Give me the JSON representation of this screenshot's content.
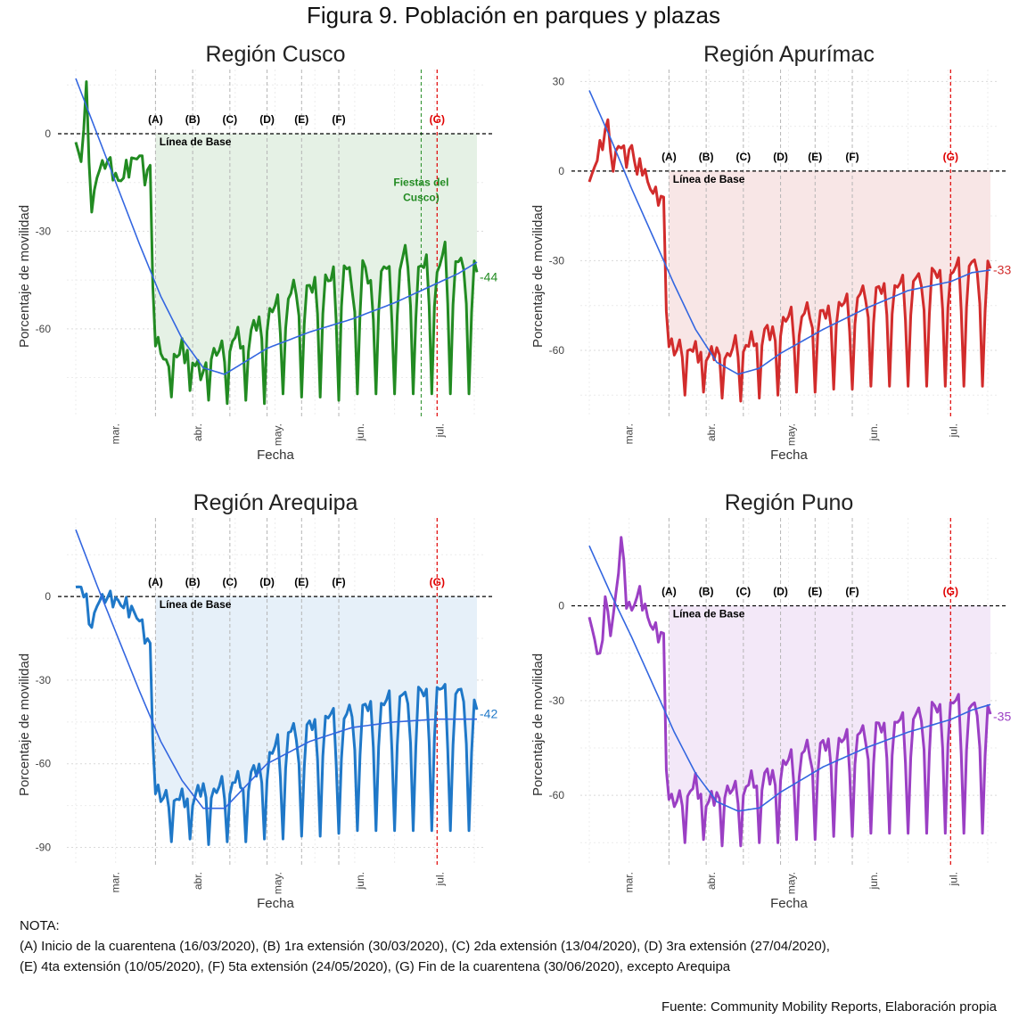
{
  "title": "Figura 9. Población en parques y plazas",
  "note_title": "NOTA:",
  "note_line1": "(A) Inicio de la cuarentena (16/03/2020), (B) 1ra extensión (30/03/2020), (C) 2da extensión (13/04/2020), (D) 3ra extensión (27/04/2020),",
  "note_line2": "(E) 4ta extensión (10/05/2020), (F) 5ta extensión (24/05/2020), (G) Fin de la cuarentena (30/06/2020), excepto Arequipa",
  "source": "Fuente: Community Mobility Reports, Elaboración propia",
  "baseline_label": "Línea de Base",
  "events": [
    {
      "label": "(A)",
      "date": "2020-03-16",
      "color": "#000000"
    },
    {
      "label": "(B)",
      "date": "2020-03-30",
      "color": "#000000"
    },
    {
      "label": "(C)",
      "date": "2020-04-13",
      "color": "#000000"
    },
    {
      "label": "(D)",
      "date": "2020-04-27",
      "color": "#000000"
    },
    {
      "label": "(E)",
      "date": "2020-05-10",
      "color": "#000000"
    },
    {
      "label": "(F)",
      "date": "2020-05-24",
      "color": "#000000"
    },
    {
      "label": "(G)",
      "date": "2020-06-30",
      "color": "#e00000"
    }
  ],
  "chart_data": [
    {
      "type": "line",
      "title": "Región Cusco",
      "xlabel": "Fecha",
      "ylabel": "Porcentaje de movilidad",
      "x_ticks": [
        "mar.",
        "abr.",
        "may.",
        "jun.",
        "jul."
      ],
      "y_ticks": [
        0,
        -30,
        -60
      ],
      "ylim": [
        -85,
        17
      ],
      "xlim": [
        "2020-02-15",
        "2020-07-15"
      ],
      "color": "#228b22",
      "fill": "#e5f1e5",
      "end_value": -44,
      "end_label": "-44",
      "annotation": {
        "text": [
          "Fiestas del",
          "Cusco)"
        ],
        "date": "2020-06-24",
        "color": "#228b22"
      },
      "trend": [
        [
          0,
          17
        ],
        [
          8,
          0
        ],
        [
          16,
          -17
        ],
        [
          24,
          -34
        ],
        [
          32,
          -50
        ],
        [
          40,
          -63
        ],
        [
          48,
          -72
        ],
        [
          56,
          -74
        ],
        [
          64,
          -70
        ],
        [
          72,
          -66
        ],
        [
          88,
          -61
        ],
        [
          104,
          -57
        ],
        [
          120,
          -52
        ],
        [
          136,
          -46
        ],
        [
          144,
          -43
        ],
        [
          152,
          -39
        ]
      ],
      "series_start": "2020-02-15",
      "weekly_dips": [
        -81,
        -79,
        -82,
        -83,
        -82,
        -83,
        -80,
        -81,
        -81,
        -82,
        -80,
        -80
      ],
      "keypoints": [
        [
          0,
          -4
        ],
        [
          2,
          -8
        ],
        [
          4,
          13
        ],
        [
          6,
          -25
        ],
        [
          8,
          -12
        ],
        [
          12,
          -8
        ],
        [
          16,
          -15
        ],
        [
          20,
          -10
        ],
        [
          24,
          -6
        ],
        [
          26,
          -13
        ],
        [
          28,
          -11
        ],
        [
          29,
          -45
        ],
        [
          30,
          -62
        ],
        [
          32,
          -66
        ],
        [
          34,
          -72
        ],
        [
          36,
          -70
        ],
        [
          40,
          -66
        ],
        [
          44,
          -70
        ],
        [
          48,
          -74
        ],
        [
          52,
          -67
        ],
        [
          56,
          -66
        ],
        [
          60,
          -62
        ],
        [
          64,
          -63
        ],
        [
          68,
          -58
        ],
        [
          72,
          -55
        ],
        [
          76,
          -52
        ],
        [
          80,
          -50
        ],
        [
          84,
          -45
        ],
        [
          88,
          -48
        ],
        [
          92,
          -42
        ],
        [
          96,
          -45
        ],
        [
          100,
          -38
        ],
        [
          104,
          -45
        ],
        [
          108,
          -40
        ],
        [
          112,
          -48
        ],
        [
          116,
          -40
        ],
        [
          120,
          -46
        ],
        [
          124,
          -36
        ],
        [
          128,
          -44
        ],
        [
          132,
          -38
        ],
        [
          136,
          -42
        ],
        [
          140,
          -33
        ],
        [
          144,
          -40
        ],
        [
          148,
          -38
        ],
        [
          152,
          -44
        ]
      ]
    },
    {
      "type": "line",
      "title": "Región Apurímac",
      "xlabel": "Fecha",
      "ylabel": "Porcentaje de movilidad",
      "x_ticks": [
        "mar.",
        "abr.",
        "may.",
        "jun.",
        "jul."
      ],
      "y_ticks": [
        30,
        0,
        -30,
        -60
      ],
      "ylim": [
        -80,
        31
      ],
      "xlim": [
        "2020-02-15",
        "2020-07-15"
      ],
      "color": "#d22c2c",
      "fill": "#f8e6e6",
      "end_value": -33,
      "end_label": "-33",
      "trend": [
        [
          0,
          27
        ],
        [
          8,
          11
        ],
        [
          16,
          -6
        ],
        [
          24,
          -22
        ],
        [
          32,
          -38
        ],
        [
          40,
          -53
        ],
        [
          48,
          -64
        ],
        [
          56,
          -68
        ],
        [
          64,
          -66
        ],
        [
          72,
          -61
        ],
        [
          88,
          -53
        ],
        [
          104,
          -46
        ],
        [
          120,
          -40
        ],
        [
          136,
          -37
        ],
        [
          144,
          -34
        ],
        [
          152,
          -33
        ]
      ],
      "series_start": "2020-02-15",
      "weekly_dips": [
        -75,
        -74,
        -76,
        -77,
        -76,
        -75,
        -74,
        -74,
        -73,
        -73,
        -72,
        -72
      ],
      "keypoints": [
        [
          0,
          -5
        ],
        [
          2,
          2
        ],
        [
          5,
          10
        ],
        [
          7,
          16
        ],
        [
          9,
          0
        ],
        [
          11,
          10
        ],
        [
          14,
          4
        ],
        [
          16,
          8
        ],
        [
          18,
          0
        ],
        [
          20,
          2
        ],
        [
          22,
          -4
        ],
        [
          25,
          -8
        ],
        [
          28,
          -10
        ],
        [
          29,
          -45
        ],
        [
          30,
          -55
        ],
        [
          32,
          -60
        ],
        [
          36,
          -58
        ],
        [
          40,
          -60
        ],
        [
          44,
          -62
        ],
        [
          48,
          -60
        ],
        [
          52,
          -62
        ],
        [
          56,
          -56
        ],
        [
          60,
          -58
        ],
        [
          64,
          -52
        ],
        [
          68,
          -54
        ],
        [
          72,
          -50
        ],
        [
          76,
          -48
        ],
        [
          80,
          -48
        ],
        [
          84,
          -45
        ],
        [
          88,
          -48
        ],
        [
          92,
          -44
        ],
        [
          96,
          -44
        ],
        [
          100,
          -42
        ],
        [
          104,
          -40
        ],
        [
          108,
          -40
        ],
        [
          112,
          -38
        ],
        [
          116,
          -38
        ],
        [
          120,
          -36
        ],
        [
          124,
          -36
        ],
        [
          128,
          -34
        ],
        [
          132,
          -34
        ],
        [
          136,
          -34
        ],
        [
          140,
          -30
        ],
        [
          144,
          -31
        ],
        [
          148,
          -31
        ],
        [
          152,
          -33
        ]
      ]
    },
    {
      "type": "line",
      "title": "Región Arequipa",
      "xlabel": "Fecha",
      "ylabel": "Porcentaje de movilidad",
      "x_ticks": [
        "mar.",
        "abr.",
        "may.",
        "jun.",
        "jul."
      ],
      "y_ticks": [
        0,
        -30,
        -60,
        -90
      ],
      "ylim": [
        -94,
        25
      ],
      "xlim": [
        "2020-02-15",
        "2020-07-15"
      ],
      "color": "#1f78c8",
      "fill": "#e6f0f9",
      "end_value": -42,
      "end_label": "-42",
      "trend": [
        [
          0,
          24
        ],
        [
          8,
          4
        ],
        [
          16,
          -15
        ],
        [
          24,
          -34
        ],
        [
          32,
          -52
        ],
        [
          40,
          -66
        ],
        [
          48,
          -76
        ],
        [
          56,
          -76
        ],
        [
          64,
          -68
        ],
        [
          72,
          -60
        ],
        [
          88,
          -52
        ],
        [
          104,
          -47
        ],
        [
          120,
          -45
        ],
        [
          136,
          -44
        ],
        [
          144,
          -44
        ],
        [
          152,
          -44
        ]
      ],
      "series_start": "2020-02-15",
      "weekly_dips": [
        -88,
        -87,
        -89,
        -88,
        -88,
        -87,
        -87,
        -86,
        -86,
        -85,
        -84,
        -84
      ],
      "keypoints": [
        [
          0,
          2
        ],
        [
          2,
          4
        ],
        [
          4,
          -2
        ],
        [
          6,
          -12
        ],
        [
          8,
          -2
        ],
        [
          12,
          0
        ],
        [
          16,
          -2
        ],
        [
          20,
          -4
        ],
        [
          24,
          -8
        ],
        [
          26,
          -14
        ],
        [
          28,
          -18
        ],
        [
          29,
          -50
        ],
        [
          30,
          -66
        ],
        [
          32,
          -72
        ],
        [
          36,
          -72
        ],
        [
          40,
          -72
        ],
        [
          44,
          -72
        ],
        [
          48,
          -68
        ],
        [
          52,
          -70
        ],
        [
          56,
          -66
        ],
        [
          60,
          -66
        ],
        [
          64,
          -64
        ],
        [
          68,
          -62
        ],
        [
          72,
          -58
        ],
        [
          76,
          -52
        ],
        [
          80,
          -48
        ],
        [
          84,
          -48
        ],
        [
          88,
          -46
        ],
        [
          92,
          -44
        ],
        [
          96,
          -42
        ],
        [
          100,
          -44
        ],
        [
          104,
          -40
        ],
        [
          108,
          -40
        ],
        [
          112,
          -38
        ],
        [
          116,
          -38
        ],
        [
          120,
          -34
        ],
        [
          124,
          -36
        ],
        [
          128,
          -34
        ],
        [
          132,
          -34
        ],
        [
          136,
          -32
        ],
        [
          140,
          -34
        ],
        [
          144,
          -34
        ],
        [
          148,
          -36
        ],
        [
          152,
          -42
        ]
      ]
    },
    {
      "type": "line",
      "title": "Región Puno",
      "xlabel": "Fecha",
      "ylabel": "Porcentaje de movilidad",
      "x_ticks": [
        "mar.",
        "abr.",
        "may.",
        "jun.",
        "jul."
      ],
      "y_ticks": [
        0,
        -30,
        -60
      ],
      "ylim": [
        -80,
        25
      ],
      "xlim": [
        "2020-02-15",
        "2020-07-15"
      ],
      "color": "#9b3fc4",
      "fill": "#f3e8f8",
      "end_value": -35,
      "end_label": "-35",
      "trend": [
        [
          0,
          19
        ],
        [
          8,
          4
        ],
        [
          16,
          -10
        ],
        [
          24,
          -25
        ],
        [
          32,
          -40
        ],
        [
          40,
          -53
        ],
        [
          48,
          -62
        ],
        [
          56,
          -65
        ],
        [
          64,
          -64
        ],
        [
          72,
          -59
        ],
        [
          88,
          -51
        ],
        [
          104,
          -45
        ],
        [
          120,
          -40
        ],
        [
          136,
          -36
        ],
        [
          144,
          -33
        ],
        [
          152,
          -31
        ]
      ],
      "series_start": "2020-02-15",
      "weekly_dips": [
        -75,
        -74,
        -76,
        -76,
        -75,
        -75,
        -74,
        -74,
        -73,
        -73,
        -72,
        -72
      ],
      "keypoints": [
        [
          0,
          -5
        ],
        [
          2,
          -10
        ],
        [
          4,
          -18
        ],
        [
          6,
          2
        ],
        [
          8,
          -8
        ],
        [
          10,
          2
        ],
        [
          12,
          22
        ],
        [
          14,
          2
        ],
        [
          16,
          -2
        ],
        [
          18,
          4
        ],
        [
          20,
          2
        ],
        [
          22,
          -4
        ],
        [
          25,
          -8
        ],
        [
          28,
          -10
        ],
        [
          29,
          -50
        ],
        [
          30,
          -60
        ],
        [
          32,
          -62
        ],
        [
          36,
          -60
        ],
        [
          40,
          -56
        ],
        [
          44,
          -62
        ],
        [
          48,
          -60
        ],
        [
          52,
          -58
        ],
        [
          56,
          -58
        ],
        [
          60,
          -56
        ],
        [
          64,
          -52
        ],
        [
          68,
          -54
        ],
        [
          72,
          -50
        ],
        [
          76,
          -48
        ],
        [
          80,
          -46
        ],
        [
          84,
          -44
        ],
        [
          88,
          -44
        ],
        [
          92,
          -42
        ],
        [
          96,
          -42
        ],
        [
          100,
          -40
        ],
        [
          104,
          -40
        ],
        [
          108,
          -38
        ],
        [
          112,
          -38
        ],
        [
          116,
          -36
        ],
        [
          120,
          -36
        ],
        [
          124,
          -34
        ],
        [
          128,
          -32
        ],
        [
          132,
          -32
        ],
        [
          136,
          -30
        ],
        [
          140,
          -30
        ],
        [
          144,
          -32
        ],
        [
          148,
          -32
        ],
        [
          152,
          -35
        ]
      ]
    }
  ]
}
